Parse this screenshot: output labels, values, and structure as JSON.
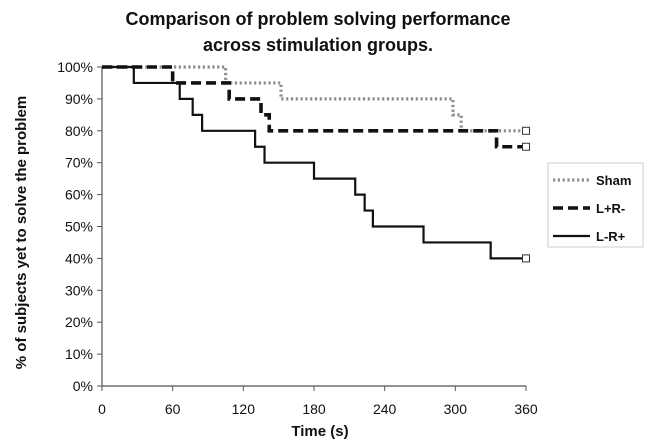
{
  "chart_data": {
    "type": "line",
    "title": "Comparison of problem solving performance across stimulation groups.",
    "title_lines": [
      "Comparison of problem solving performance",
      "across stimulation groups."
    ],
    "xlabel": "Time (s)",
    "ylabel": "% of subjects yet to solve the problem",
    "xlim": [
      0,
      360
    ],
    "ylim": [
      0,
      100
    ],
    "x_ticks": [
      0,
      60,
      120,
      180,
      240,
      300,
      360
    ],
    "y_ticks": [
      0,
      10,
      20,
      30,
      40,
      50,
      60,
      70,
      80,
      90,
      100
    ],
    "y_tick_labels": [
      "0%",
      "10%",
      "20%",
      "30%",
      "40%",
      "50%",
      "60%",
      "70%",
      "80%",
      "90%",
      "100%"
    ],
    "grid": false,
    "legend_position": "right",
    "step": true,
    "censor_marker": "open-square",
    "series": [
      {
        "name": "Sham",
        "style": "dotted",
        "color": "#8c8c8c",
        "x": [
          0,
          105,
          152,
          298,
          305,
          345,
          360
        ],
        "y": [
          100,
          95,
          90,
          85,
          80,
          80,
          80
        ]
      },
      {
        "name": "L+R-",
        "style": "dashed",
        "color": "#111111",
        "x": [
          0,
          60,
          108,
          135,
          142,
          335,
          360
        ],
        "y": [
          100,
          95,
          90,
          85,
          80,
          75,
          75
        ]
      },
      {
        "name": "L-R+",
        "style": "solid",
        "color": "#111111",
        "x": [
          0,
          27,
          66,
          77,
          85,
          130,
          138,
          180,
          215,
          223,
          230,
          245,
          273,
          330,
          360
        ],
        "y": [
          100,
          95,
          90,
          85,
          80,
          75,
          70,
          65,
          60,
          55,
          50,
          50,
          45,
          40,
          40
        ]
      }
    ]
  }
}
